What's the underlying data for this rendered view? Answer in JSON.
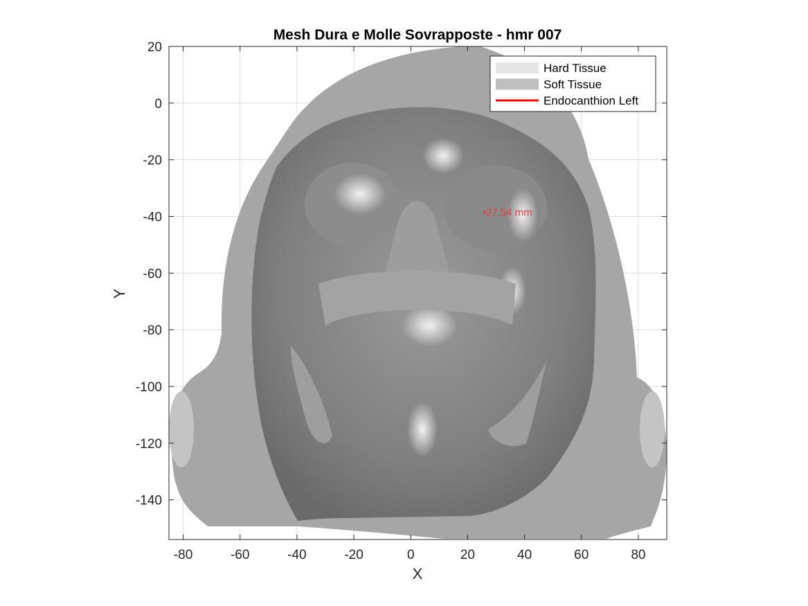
{
  "chart_data": {
    "type": "scatter",
    "title": "Mesh Dura e Molle Sovrapposte - hmr 007",
    "xlabel": "X",
    "ylabel": "Y",
    "xlim": [
      -85,
      90
    ],
    "ylim": [
      -154,
      20
    ],
    "xticks": [
      -80,
      -60,
      -40,
      -20,
      0,
      20,
      40,
      60,
      80
    ],
    "xtick_labels": [
      "-80",
      "-60",
      "-40",
      "-20",
      "0",
      "20",
      "40",
      "60",
      "80"
    ],
    "yticks": [
      20,
      0,
      -20,
      -40,
      -60,
      -80,
      -100,
      -120,
      -140
    ],
    "ytick_labels": [
      "20",
      "0",
      "-20",
      "-40",
      "-60",
      "-80",
      "-100",
      "-120",
      "-140"
    ],
    "grid": true,
    "legend_position": "top-right",
    "series": [
      {
        "name": "Hard Tissue",
        "kind": "surface",
        "color": "#e6e6e6"
      },
      {
        "name": "Soft Tissue",
        "kind": "surface",
        "color": "#bfbfbf"
      },
      {
        "name": "Endocanthion Left",
        "kind": "line",
        "color": "#ff0000"
      }
    ],
    "annotations": [
      {
        "text": "27.54 mm",
        "x": 26.5,
        "y": -38.5,
        "color": "#e04040"
      }
    ]
  }
}
